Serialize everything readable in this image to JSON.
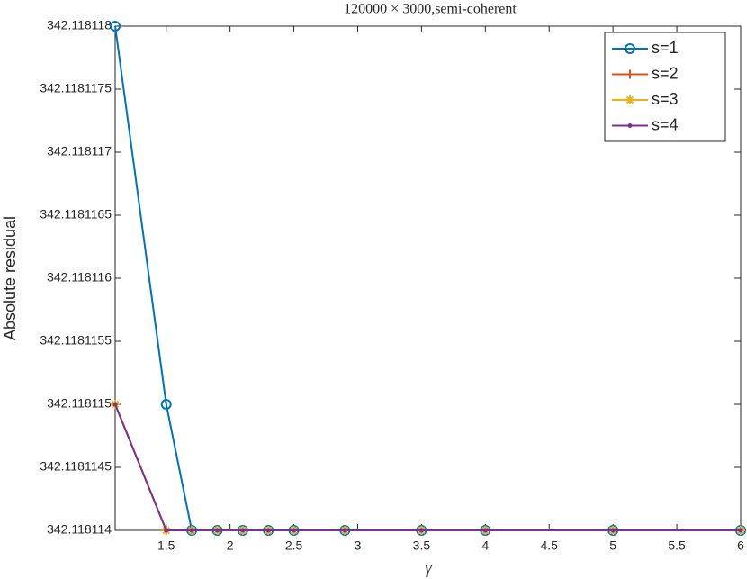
{
  "chart_data": {
    "type": "line",
    "title": "120000 × 3000,semi-coherent",
    "x_label": "γ",
    "y_label": "Absolute residual",
    "x": [
      1.1,
      1.5,
      1.7,
      1.9,
      2.1,
      2.3,
      2.5,
      2.9,
      3.5,
      4,
      5,
      6
    ],
    "series": [
      {
        "name": "s=1",
        "color": "#0072bd",
        "marker": "o",
        "values": [
          342.118118,
          342.118115,
          342.118114,
          342.118114,
          342.118114,
          342.118114,
          342.118114,
          342.118114,
          342.118114,
          342.118114,
          342.118114,
          342.118114
        ]
      },
      {
        "name": "s=2",
        "color": "#d95319",
        "marker": "+",
        "values": [
          342.118115,
          342.118114,
          342.118114,
          342.118114,
          342.118114,
          342.118114,
          342.118114,
          342.118114,
          342.118114,
          342.118114,
          342.118114,
          342.118114
        ]
      },
      {
        "name": "s=3",
        "color": "#edb120",
        "marker": "*",
        "values": [
          342.118115,
          342.118114,
          342.118114,
          342.118114,
          342.118114,
          342.118114,
          342.118114,
          342.118114,
          342.118114,
          342.118114,
          342.118114,
          342.118114
        ]
      },
      {
        "name": "s=4",
        "color": "#7e2f8e",
        "marker": ".",
        "values": [
          342.118115,
          342.118114,
          342.118114,
          342.118114,
          342.118114,
          342.118114,
          342.118114,
          342.118114,
          342.118114,
          342.118114,
          342.118114,
          342.118114
        ]
      }
    ],
    "xlim": [
      1.1,
      6
    ],
    "xticks": [
      1.5,
      2,
      2.5,
      3,
      3.5,
      4,
      4.5,
      5,
      5.5,
      6
    ],
    "ylim": [
      342.118114,
      342.118118
    ],
    "yticks": [
      342.118114,
      342.1181145,
      342.118115,
      342.1181155,
      342.118116,
      342.1181165,
      342.118117,
      342.1181175,
      342.118118
    ],
    "legend": "top-right"
  }
}
